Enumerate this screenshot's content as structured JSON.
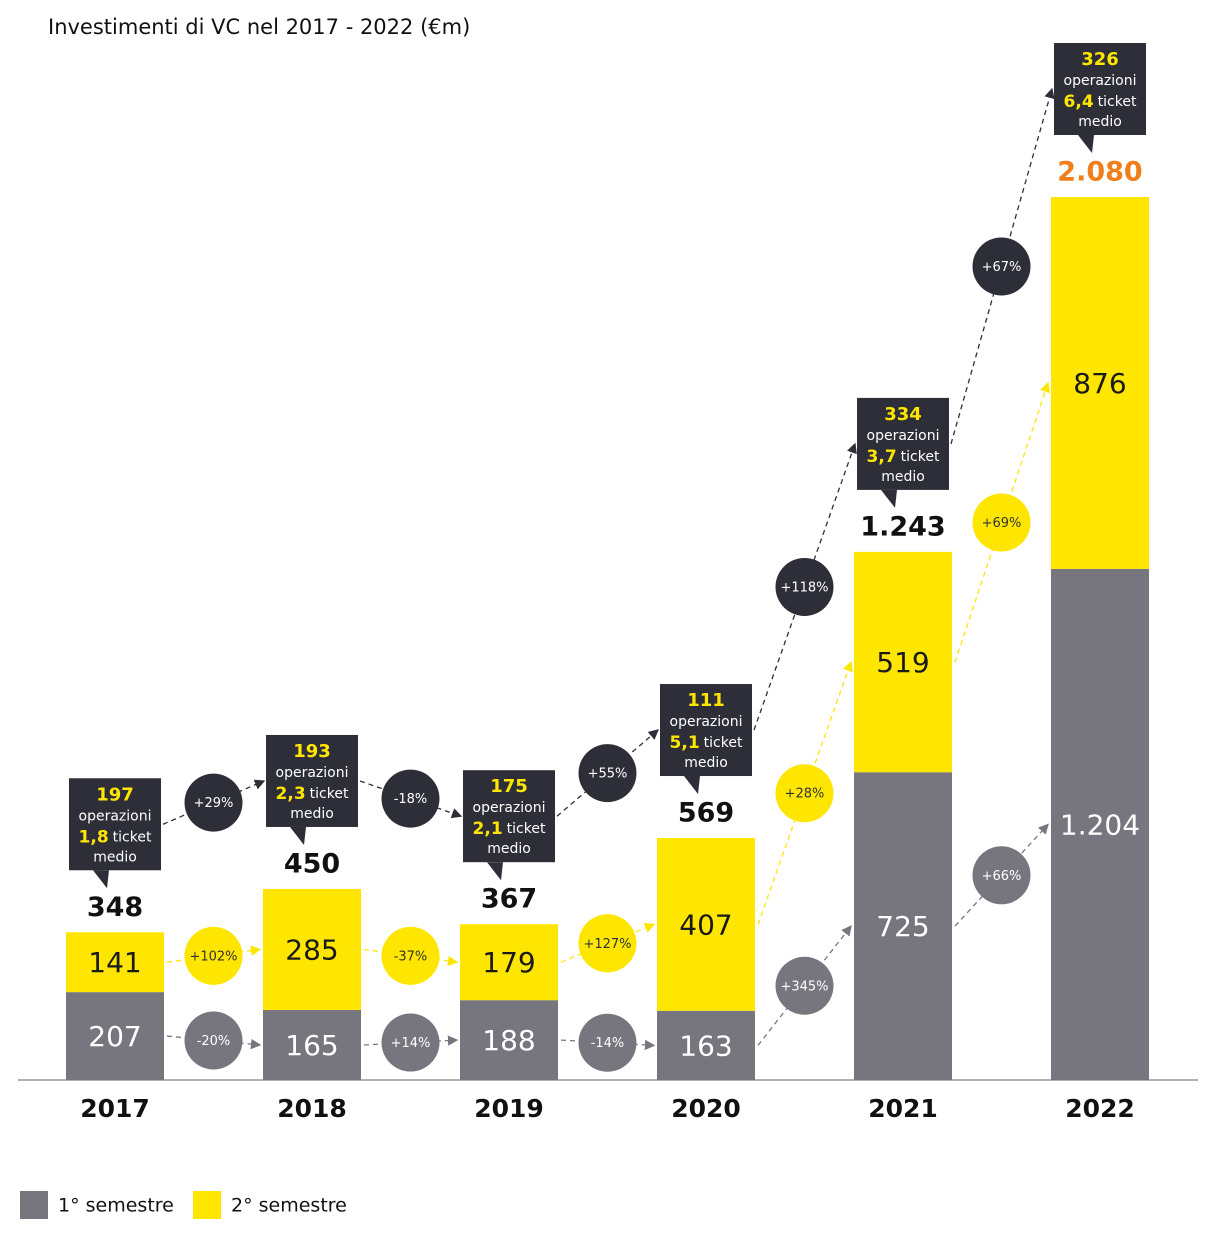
{
  "chart_data": {
    "type": "stacked-bar",
    "title": "Investimenti di VC nel 2017 - 2022 (€m)",
    "categories": [
      "2017",
      "2018",
      "2019",
      "2020",
      "2021",
      "2022"
    ],
    "series": [
      {
        "name": "1° semestre",
        "color": "#77767f",
        "values": [
          207,
          165,
          188,
          163,
          725,
          1204
        ],
        "value_labels": [
          "207",
          "165",
          "188",
          "163",
          "725",
          "1.204"
        ],
        "growth_labels": [
          "-20%",
          "+14%",
          "-14%",
          "+345%",
          "+66%"
        ]
      },
      {
        "name": "2° semestre",
        "color": "#ffe600",
        "values": [
          141,
          285,
          179,
          407,
          519,
          876
        ],
        "value_labels": [
          "141",
          "285",
          "179",
          "407",
          "519",
          "876"
        ],
        "growth_labels": [
          "+102%",
          "-37%",
          "+127%",
          "+28%",
          "+69%"
        ]
      }
    ],
    "totals": {
      "values": [
        348,
        450,
        367,
        569,
        1243,
        2080
      ],
      "value_labels": [
        "348",
        "450",
        "367",
        "569",
        "1.243",
        "2.080"
      ],
      "colors": [
        "#111111",
        "#111111",
        "#111111",
        "#111111",
        "#111111",
        "#f07e1a"
      ],
      "growth_labels": [
        "+29%",
        "-18%",
        "+55%",
        "+118%",
        "+67%"
      ]
    },
    "deals": {
      "values": [
        197,
        193,
        175,
        111,
        334,
        326
      ],
      "label": "operazioni"
    },
    "ticket_medio": {
      "values": [
        1.8,
        2.3,
        2.1,
        5.1,
        3.7,
        6.4
      ],
      "value_labels": [
        "1,8",
        "2,3",
        "2,1",
        "5,1",
        "3,7",
        "6,4"
      ],
      "label_1": "ticket",
      "label_2": "medio"
    },
    "legend": true
  }
}
